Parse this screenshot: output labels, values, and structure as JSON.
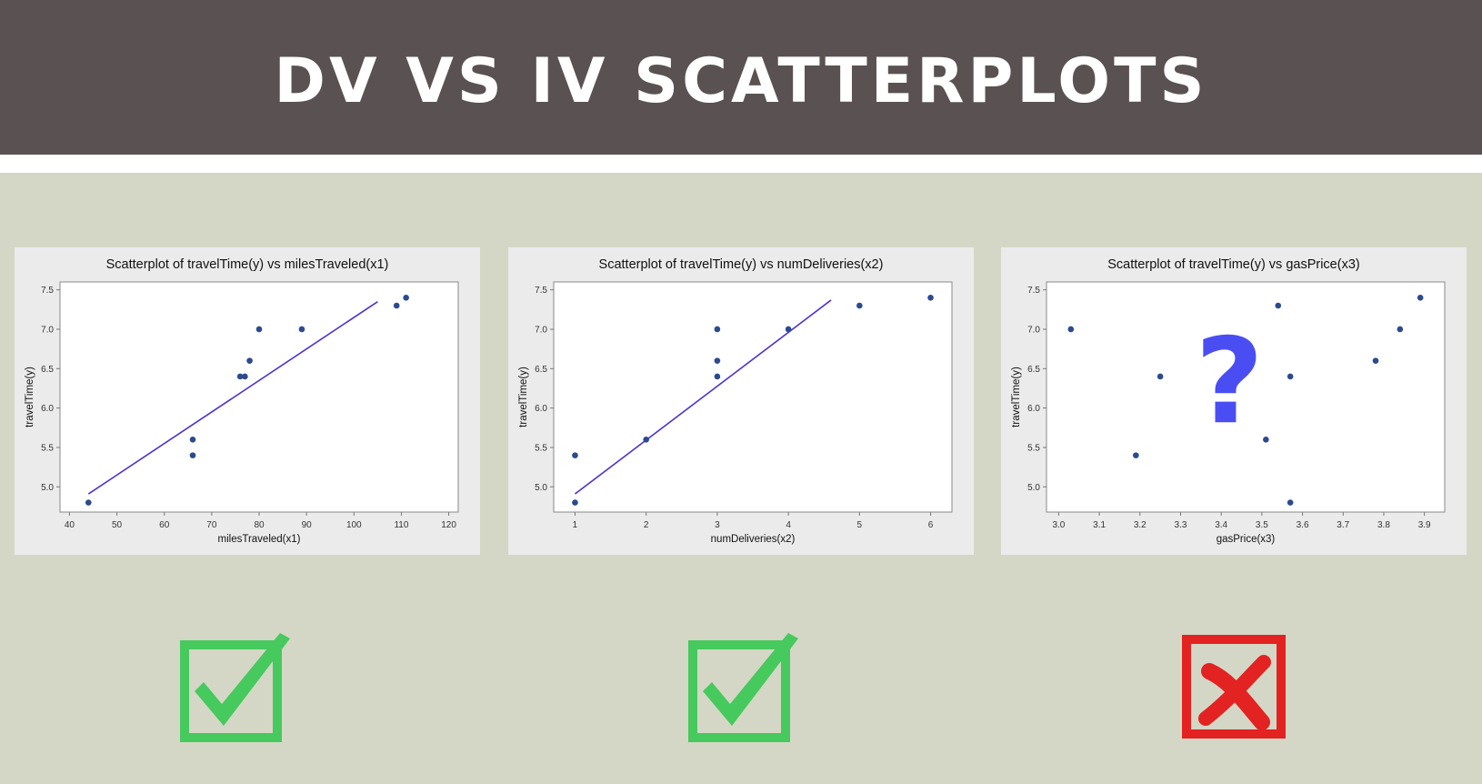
{
  "header": {
    "title": "DV VS IV SCATTERPLOTS"
  },
  "colors": {
    "header_bg": "#5a5152",
    "page_bg": "#d4d7c5",
    "panel_bg": "#ebebeb",
    "point": "#2c4a8e",
    "fit_line": "#4b32d4",
    "check": "#46c95d",
    "cross": "#e32222",
    "question": "#4a4ef2"
  },
  "chart_data": [
    {
      "type": "scatter",
      "title": "Scatterplot of travelTime(y) vs milesTraveled(x1)",
      "xlabel": "milesTraveled(x1)",
      "ylabel": "travelTime(y)",
      "xlim": [
        38,
        122
      ],
      "ylim": [
        4.68,
        7.6
      ],
      "xticks": [
        40,
        50,
        60,
        70,
        80,
        90,
        100,
        110,
        120
      ],
      "yticks": [
        5.0,
        5.5,
        6.0,
        6.5,
        7.0,
        7.5
      ],
      "x": [
        44,
        66,
        66,
        76,
        77,
        78,
        80,
        89,
        109,
        111
      ],
      "y": [
        4.8,
        5.6,
        5.4,
        6.4,
        6.4,
        6.6,
        7.0,
        7.0,
        7.3,
        7.4
      ],
      "fit_line": {
        "x": [
          44,
          105
        ],
        "y": [
          4.91,
          7.35
        ]
      },
      "verdict": "check"
    },
    {
      "type": "scatter",
      "title": "Scatterplot of travelTime(y) vs numDeliveries(x2)",
      "xlabel": "numDeliveries(x2)",
      "ylabel": "travelTime(y)",
      "xlim": [
        0.7,
        6.3
      ],
      "ylim": [
        4.68,
        7.6
      ],
      "xticks": [
        1,
        2,
        3,
        4,
        5,
        6
      ],
      "yticks": [
        5.0,
        5.5,
        6.0,
        6.5,
        7.0,
        7.5
      ],
      "x": [
        1,
        1,
        2,
        3,
        3,
        3,
        4,
        5,
        6
      ],
      "y": [
        4.8,
        5.4,
        5.6,
        6.4,
        6.6,
        7.0,
        7.0,
        7.3,
        7.4
      ],
      "fit_line": {
        "x": [
          1,
          4.6
        ],
        "y": [
          4.91,
          7.37
        ]
      },
      "verdict": "check"
    },
    {
      "type": "scatter",
      "title": "Scatterplot of travelTime(y) vs gasPrice(x3)",
      "xlabel": "gasPrice(x3)",
      "ylabel": "travelTime(y)",
      "xlim": [
        2.97,
        3.95
      ],
      "ylim": [
        4.68,
        7.6
      ],
      "xticks": [
        "3.0",
        "3.1",
        "3.2",
        "3.3",
        "3.4",
        "3.5",
        "3.6",
        "3.7",
        "3.8",
        "3.9"
      ],
      "yticks": [
        5.0,
        5.5,
        6.0,
        6.5,
        7.0,
        7.5
      ],
      "x": [
        3.03,
        3.19,
        3.25,
        3.51,
        3.54,
        3.57,
        3.57,
        3.78,
        3.84,
        3.89
      ],
      "y": [
        7.0,
        5.4,
        6.4,
        5.6,
        7.3,
        6.4,
        4.8,
        6.6,
        7.0,
        7.4
      ],
      "annotation": "?",
      "verdict": "cross"
    }
  ]
}
